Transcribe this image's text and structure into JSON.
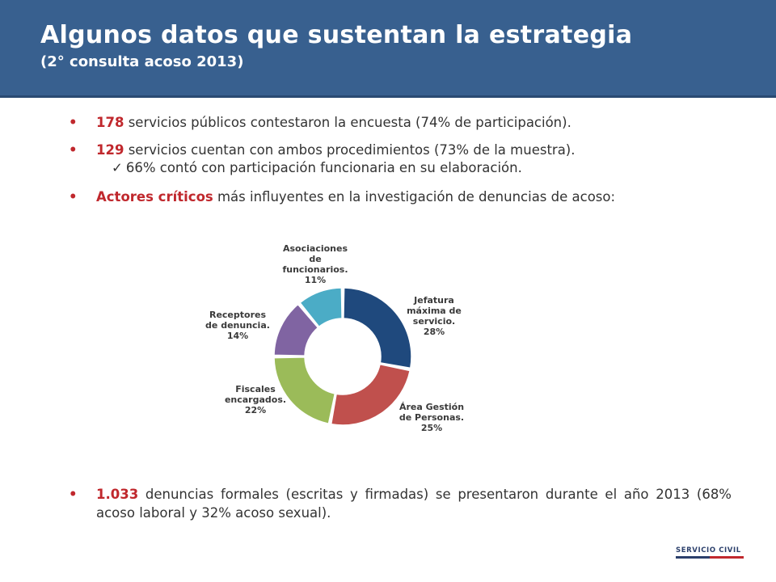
{
  "header": {
    "title": "Algunos datos que sustentan la estrategia",
    "subtitle": "(2° consulta acoso 2013)",
    "background": "#38608f"
  },
  "bullets": [
    {
      "highlight": "178",
      "text": " servicios públicos contestaron la encuesta (74% de participación)."
    },
    {
      "highlight": "129",
      "text": " servicios cuentan con ambos procedimientos (73% de la muestra)."
    },
    {
      "highlight": "Actores críticos",
      "text": " más influyentes en la investigación de denuncias de acoso:"
    },
    {
      "highlight": "1.033",
      "text": " denuncias formales (escritas y firmadas) se presentaron durante el año 2013 (68% acoso laboral y 32% acoso sexual)."
    }
  ],
  "sub_bullet": {
    "icon": "check-icon",
    "text": "66% contó con participación funcionaria en su elaboración."
  },
  "chart_data": {
    "type": "pie",
    "title": "",
    "donut": true,
    "slices": [
      {
        "lines": [
          "Jefatura",
          "máxima de",
          "servicio.",
          "28%"
        ],
        "value": 28,
        "color": "#1f497d"
      },
      {
        "lines": [
          "Área Gestión",
          "de Personas.",
          "25%"
        ],
        "value": 25,
        "color": "#c0504d"
      },
      {
        "lines": [
          "Fiscales",
          "encargados.",
          "22%"
        ],
        "value": 22,
        "color": "#9bbb59"
      },
      {
        "lines": [
          "Receptores",
          "de denuncia.",
          "14%"
        ],
        "value": 14,
        "color": "#8064a2"
      },
      {
        "lines": [
          "Asociaciones",
          "de",
          "funcionarios.",
          "11%"
        ],
        "value": 11,
        "color": "#4bacc6"
      }
    ]
  },
  "logo": {
    "text": "SERVICIO CIVIL",
    "colors": [
      "#2b3f6b",
      "#c0282d"
    ]
  },
  "colors": {
    "accent": "#c0282d",
    "text": "#333333"
  }
}
